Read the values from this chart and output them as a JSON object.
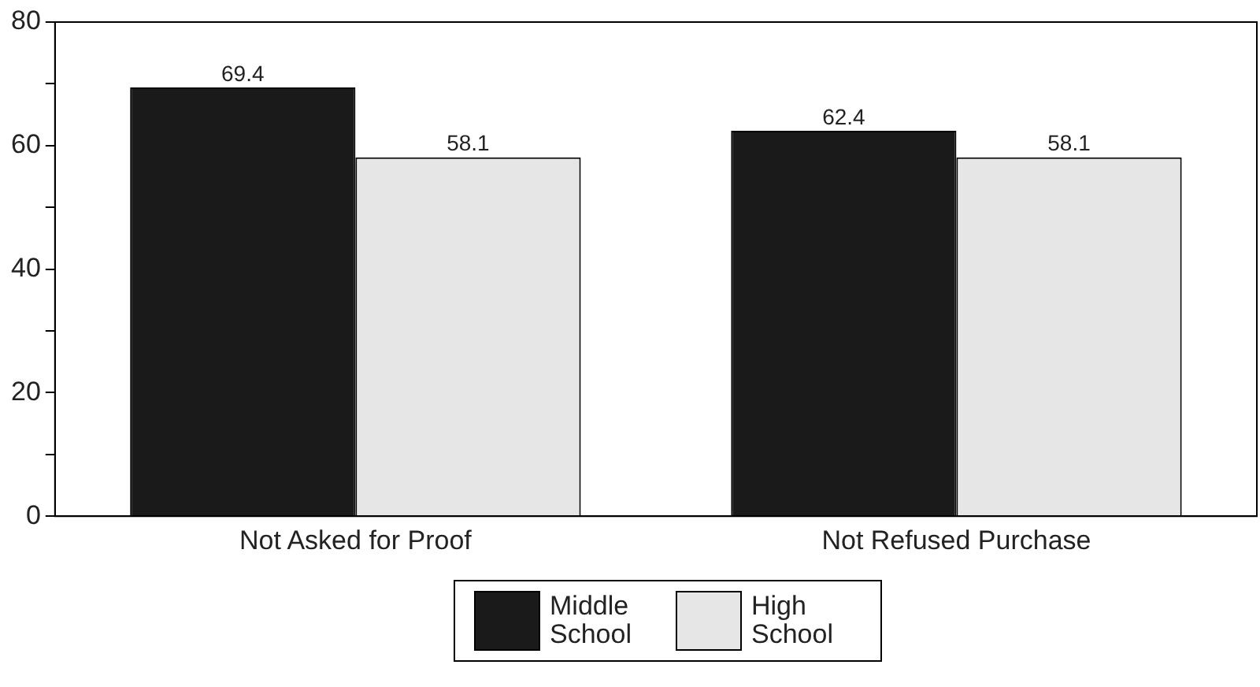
{
  "chart_data": {
    "type": "bar",
    "categories": [
      "Not Asked for Proof",
      "Not Refused Purchase"
    ],
    "series": [
      {
        "name": "Middle School",
        "color": "#1a1a1a",
        "values": [
          69.4,
          62.4
        ]
      },
      {
        "name": "High School",
        "color": "#e6e6e6",
        "values": [
          58.1,
          58.1
        ]
      }
    ],
    "ylim": [
      0,
      80
    ],
    "yticks": [
      0,
      {
        "value": 10,
        "label": null
      },
      20,
      {
        "value": 30,
        "label": null
      },
      40,
      {
        "value": 50,
        "label": null
      },
      60,
      {
        "value": 70,
        "label": null
      },
      80
    ],
    "data_labels": true,
    "grid": false,
    "legend": "bottom"
  }
}
